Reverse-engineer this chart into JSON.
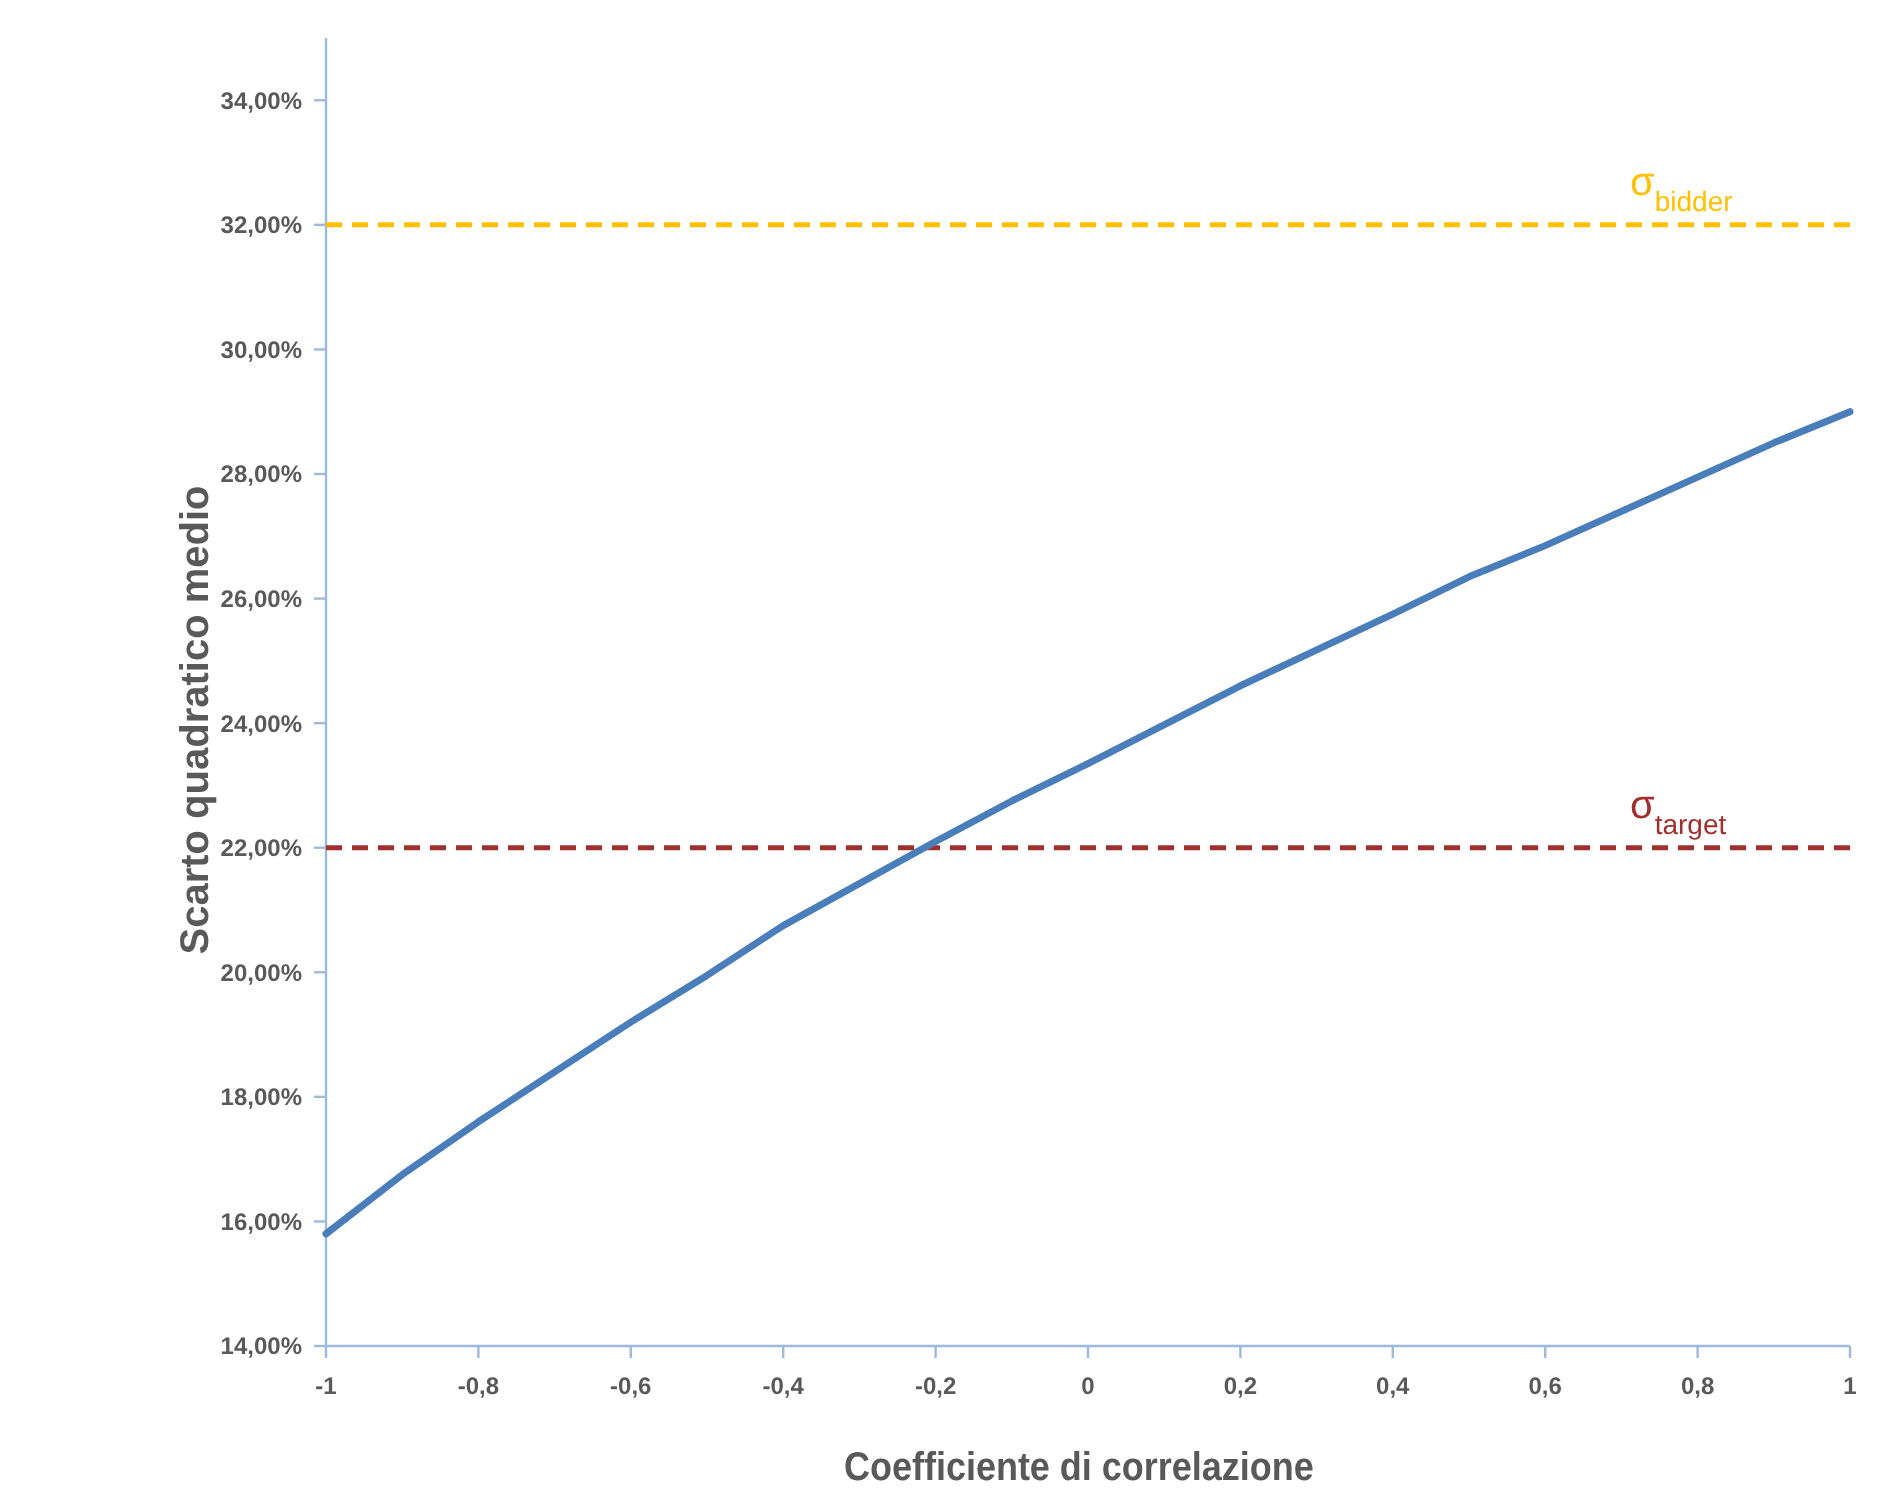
{
  "chart_data": {
    "type": "line",
    "xlabel": "Coefficiente di correlazione",
    "ylabel": "Scarto quadratico medio",
    "series": [
      {
        "color": "#4a7ebb",
        "x": [
          -1,
          -0.9,
          -0.8,
          -0.6,
          -0.5,
          -0.4,
          -0.2,
          -0.1,
          0,
          0.2,
          0.4,
          0.5,
          0.6,
          0.8,
          0.9,
          1
        ],
        "values": [
          15.8,
          16.75,
          17.6,
          19.2,
          19.95,
          20.75,
          22.1,
          22.75,
          23.35,
          24.6,
          25.75,
          26.35,
          26.85,
          27.95,
          28.5,
          29.0
        ]
      }
    ],
    "xlim": [
      -1,
      1
    ],
    "xticks": [
      -1,
      {
        "value": -0.8,
        "label": "-0,8"
      },
      {
        "value": -0.6,
        "label": "-0,6"
      },
      {
        "value": -0.4,
        "label": "-0,4"
      },
      {
        "value": -0.2,
        "label": "-0,2"
      },
      0,
      {
        "value": 0.2,
        "label": "0,2"
      },
      {
        "value": 0.4,
        "label": "0,4"
      },
      {
        "value": 0.6,
        "label": "0,6"
      },
      {
        "value": 0.8,
        "label": "0,8"
      },
      1
    ],
    "ylim": [
      14,
      35
    ],
    "yticks": [
      {
        "value": 14,
        "label": "14,00%"
      },
      {
        "value": 16,
        "label": "16,00%"
      },
      {
        "value": 18,
        "label": "18,00%"
      },
      {
        "value": 20,
        "label": "20,00%"
      },
      {
        "value": 22,
        "label": "22,00%"
      },
      {
        "value": 24,
        "label": "24,00%"
      },
      {
        "value": 26,
        "label": "26,00%"
      },
      {
        "value": 28,
        "label": "28,00%"
      },
      {
        "value": 30,
        "label": "30,00%"
      },
      {
        "value": 32,
        "label": "32,00%"
      },
      {
        "value": 34,
        "label": "34,00%"
      }
    ],
    "ref_lines": [
      {
        "axis": "y",
        "value": 32,
        "label": "σ$_{bidder}$",
        "color": "#ffc000",
        "line_style": "dashed"
      },
      {
        "axis": "y",
        "value": 22,
        "label": "σ$_{target}$",
        "color": "#a0302d",
        "line_style": "dashed"
      }
    ],
    "grid": false,
    "marker": "none",
    "line_style": "solid"
  }
}
